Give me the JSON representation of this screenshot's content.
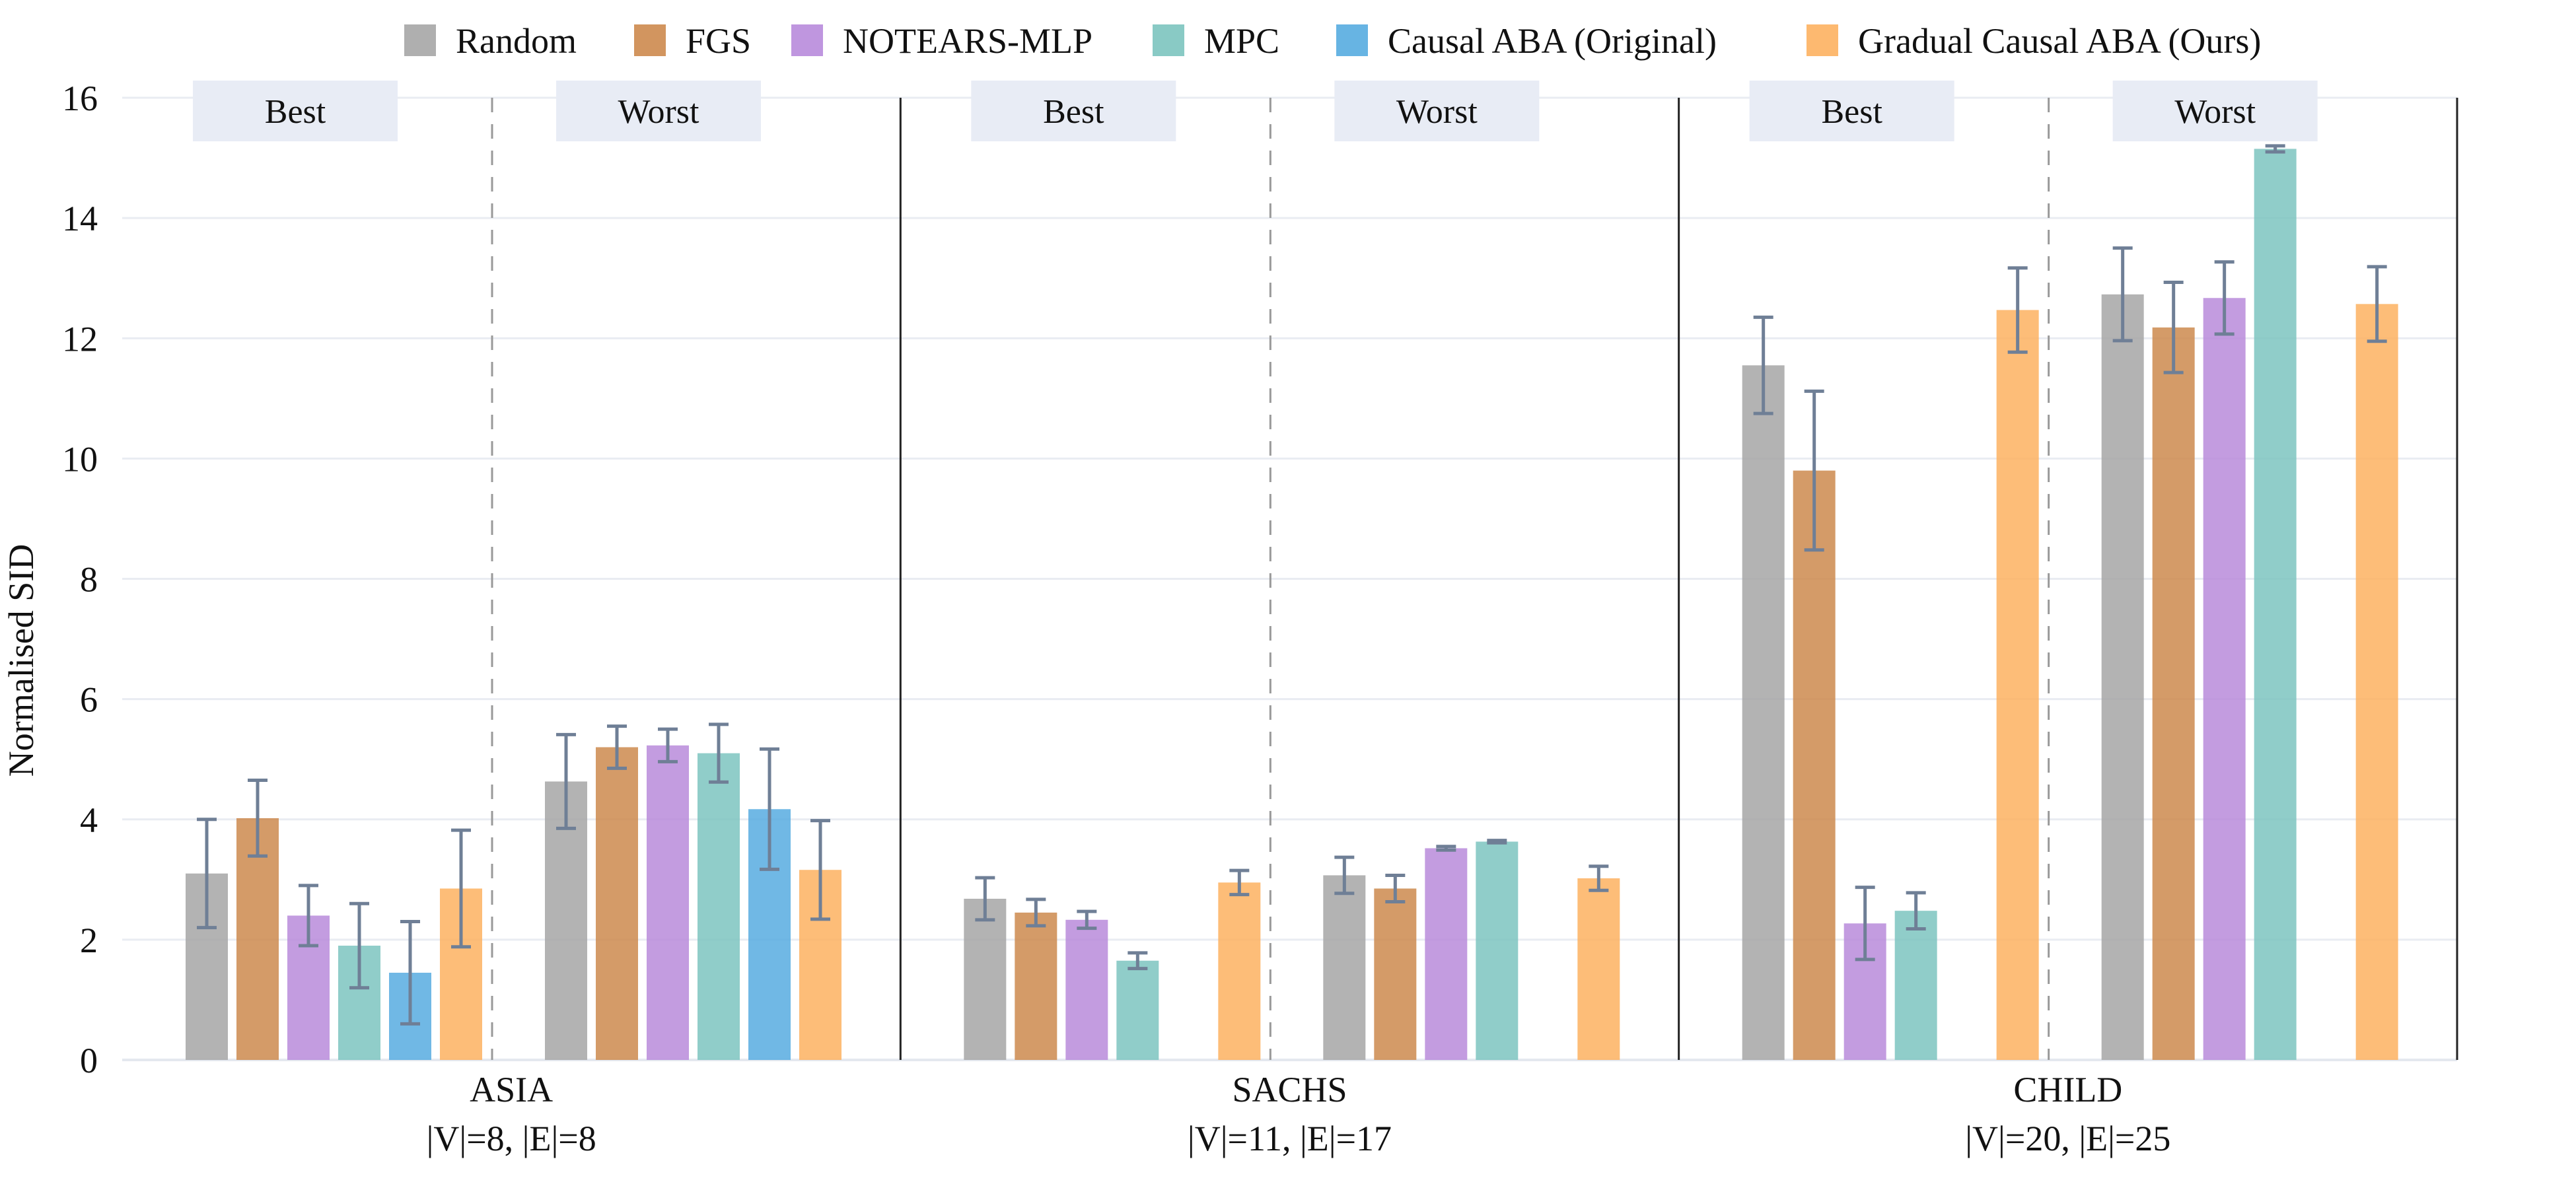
{
  "chart_data": {
    "type": "bar",
    "title": "",
    "ylabel": "Normalised SID",
    "xlabel": "",
    "ylim": [
      0,
      16
    ],
    "yticks": [
      0,
      2,
      4,
      6,
      8,
      10,
      12,
      14,
      16
    ],
    "grid": true,
    "legend_position": "top-center",
    "series": [
      {
        "name": "Random",
        "color": "#a6a6a6"
      },
      {
        "name": "FGS",
        "color": "#cd8a4e"
      },
      {
        "name": "NOTEARS-MLP",
        "color": "#b88bdb"
      },
      {
        "name": "MPC",
        "color": "#7cc4bf"
      },
      {
        "name": "Causal ABA (Original)",
        "color": "#57ace0"
      },
      {
        "name": "Gradual Causal ABA (Ours)",
        "color": "#fdb160"
      }
    ],
    "groups": [
      {
        "name": "ASIA",
        "subtitle": "|V|=8, |E|=8",
        "subgroups": [
          {
            "label": "Best",
            "values": [
              3.1,
              4.02,
              2.4,
              1.9,
              1.45,
              2.85
            ],
            "errors": [
              0.9,
              0.63,
              0.5,
              0.7,
              0.85,
              0.97
            ]
          },
          {
            "label": "Worst",
            "values": [
              4.63,
              5.2,
              5.23,
              5.1,
              4.17,
              3.16
            ],
            "errors": [
              0.78,
              0.35,
              0.27,
              0.48,
              1.0,
              0.82
            ]
          }
        ]
      },
      {
        "name": "SACHS",
        "subtitle": "|V|=11, |E|=17",
        "subgroups": [
          {
            "label": "Best",
            "values": [
              2.68,
              2.45,
              2.33,
              1.65,
              null,
              2.95
            ],
            "errors": [
              0.35,
              0.22,
              0.14,
              0.13,
              null,
              0.2
            ]
          },
          {
            "label": "Worst",
            "values": [
              3.07,
              2.85,
              3.52,
              3.63,
              null,
              3.02
            ],
            "errors": [
              0.3,
              0.22,
              0.03,
              0.02,
              null,
              0.2
            ]
          }
        ]
      },
      {
        "name": "CHILD",
        "subtitle": "|V|=20, |E|=25",
        "subgroups": [
          {
            "label": "Best",
            "values": [
              11.55,
              9.8,
              2.27,
              2.48,
              null,
              12.47
            ],
            "errors": [
              0.8,
              1.32,
              0.6,
              0.3,
              null,
              0.7
            ]
          },
          {
            "label": "Worst",
            "values": [
              12.73,
              12.18,
              12.67,
              15.15,
              null,
              12.57
            ],
            "errors": [
              0.77,
              0.75,
              0.6,
              0.05,
              null,
              0.62
            ]
          }
        ]
      }
    ]
  }
}
